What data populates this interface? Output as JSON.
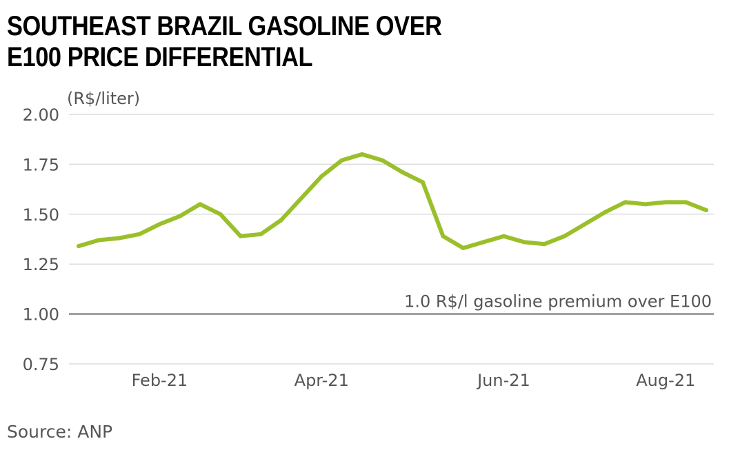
{
  "title_lines": [
    "SOUTHEAST BRAZIL GASOLINE OVER",
    "E100 PRICE DIFFERENTIAL"
  ],
  "source": "Source: ANP",
  "chart_data": {
    "type": "line",
    "title": "SOUTHEAST BRAZIL GASOLINE OVER E100 PRICE DIFFERENTIAL",
    "ylabel": "(R$/liter)",
    "ylim": [
      0.75,
      2.0
    ],
    "yticks": [
      0.75,
      1.0,
      1.25,
      1.5,
      1.75,
      2.0
    ],
    "ytick_labels": [
      "0.75",
      "1.00",
      "1.25",
      "1.50",
      "1.75",
      "2.00"
    ],
    "x_tick_labels": [
      {
        "label": "Feb-21",
        "index": 4
      },
      {
        "label": "Apr-21",
        "index": 12
      },
      {
        "label": "Jun-21",
        "index": 21
      },
      {
        "label": "Aug-21",
        "index": 29
      }
    ],
    "grid": true,
    "line_color": "#9bbf2a",
    "reference_line": {
      "value": 1.0,
      "label": "1.0 R$/l gasoline premium over E100"
    },
    "series": [
      {
        "values": [
          1.34,
          1.37,
          1.38,
          1.4,
          1.45,
          1.49,
          1.55,
          1.5,
          1.39,
          1.4,
          1.47,
          1.58,
          1.69,
          1.77,
          1.8,
          1.77,
          1.71,
          1.66,
          1.39,
          1.33,
          1.36,
          1.39,
          1.36,
          1.35,
          1.39,
          1.45,
          1.51,
          1.56,
          1.55,
          1.56,
          1.56,
          1.52
        ]
      }
    ]
  }
}
